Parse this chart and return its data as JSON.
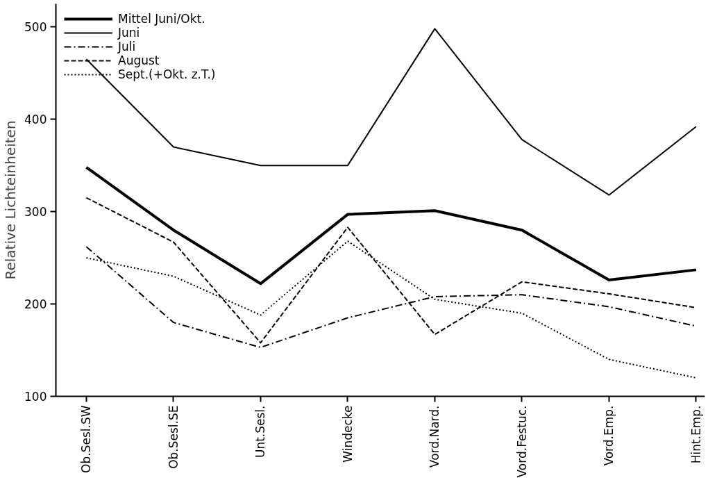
{
  "chart_data": {
    "type": "line",
    "ylabel": "Relative Lichteinheiten",
    "categories": [
      "Ob.Sesl.SW",
      "Ob.Sesl.SE",
      "Unt.Sesl.",
      "Windecke",
      "Vord.Nard.",
      "Vord.Festuc.",
      "Vord.Emp.",
      "Hint.Emp."
    ],
    "ylim": [
      100,
      525
    ],
    "yticks": [
      100,
      200,
      300,
      400,
      500
    ],
    "grid": false,
    "legend": "top left",
    "marker": "none",
    "series": [
      {
        "name": "Mittel Juni/Okt.",
        "color": "#000000",
        "line_style": "solid",
        "values": [
          348,
          280,
          222,
          297,
          301,
          280,
          226,
          237
        ]
      },
      {
        "name": "Juni",
        "color": "#000000",
        "line_style": "solid",
        "values": [
          465,
          370,
          350,
          350,
          498,
          378,
          318,
          392
        ]
      },
      {
        "name": "Juli",
        "color": "#000000",
        "line_style": "dashdot",
        "values": [
          262,
          180,
          153,
          185,
          208,
          210,
          197,
          176
        ]
      },
      {
        "name": "August",
        "color": "#000000",
        "line_style": "dashed",
        "values": [
          315,
          267,
          158,
          283,
          167,
          224,
          211,
          196
        ]
      },
      {
        "name": "Sept.(+Okt. z.T.)",
        "color": "#000000",
        "line_style": "dotted",
        "values": [
          250,
          230,
          188,
          268,
          205,
          190,
          140,
          120
        ]
      }
    ]
  }
}
